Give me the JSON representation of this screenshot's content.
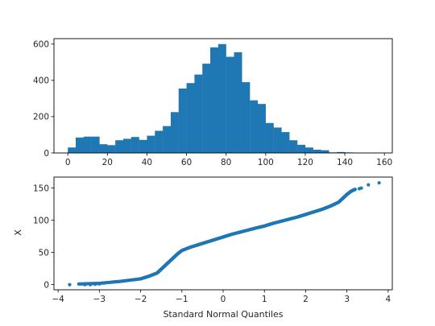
{
  "chart_data": [
    {
      "type": "bar",
      "subtype": "histogram",
      "color": "#1f77b4",
      "xlim": [
        -7,
        164
      ],
      "ylim": [
        0,
        630
      ],
      "xticks": [
        0,
        20,
        40,
        60,
        80,
        100,
        120,
        140,
        160
      ],
      "yticks": [
        0,
        200,
        400,
        600
      ],
      "xticklabels": [
        "0",
        "20",
        "40",
        "60",
        "80",
        "100",
        "120",
        "140",
        "160"
      ],
      "yticklabels": [
        "0",
        "200",
        "400",
        "600"
      ],
      "bin_edges": [
        0,
        4,
        8,
        12,
        16,
        20,
        24,
        28,
        32,
        36,
        40,
        44,
        48,
        52,
        56,
        60,
        64,
        68,
        72,
        76,
        80,
        84,
        88,
        92,
        96,
        100,
        104,
        108,
        112,
        116,
        120,
        124,
        128,
        132,
        136,
        140,
        144,
        148,
        152,
        156,
        160
      ],
      "counts": [
        30,
        85,
        90,
        90,
        48,
        43,
        70,
        78,
        88,
        72,
        95,
        122,
        148,
        225,
        355,
        385,
        432,
        492,
        582,
        600,
        530,
        555,
        390,
        290,
        270,
        165,
        140,
        115,
        70,
        45,
        30,
        18,
        15,
        3,
        5,
        3,
        0,
        0,
        0,
        0
      ],
      "grid": false
    },
    {
      "type": "scatter",
      "subtype": "qq-plot",
      "color": "#1f77b4",
      "xlabel": "Standard Normal Quantiles",
      "ylabel": "X",
      "xlim": [
        -4.1,
        4.1
      ],
      "ylim": [
        -8,
        167
      ],
      "xticks": [
        -4,
        -3,
        -2,
        -1,
        0,
        1,
        2,
        3,
        4
      ],
      "yticks": [
        0,
        50,
        100,
        150
      ],
      "xticklabels": [
        "−4",
        "−3",
        "−2",
        "−1",
        "0",
        "1",
        "2",
        "3",
        "4"
      ],
      "yticklabels": [
        "0",
        "50",
        "100",
        "150"
      ],
      "curve_x": [
        -3.5,
        -3.0,
        -2.5,
        -2.0,
        -1.8,
        -1.6,
        -1.5,
        -1.4,
        -1.3,
        -1.2,
        -1.1,
        -1.0,
        -0.8,
        -0.6,
        -0.4,
        -0.2,
        0.0,
        0.2,
        0.5,
        0.8,
        1.0,
        1.2,
        1.5,
        1.8,
        2.0,
        2.2,
        2.4,
        2.6,
        2.8,
        2.9,
        3.0,
        3.1,
        3.2
      ],
      "curve_y": [
        1,
        2,
        5,
        9,
        13,
        18,
        24,
        30,
        36,
        42,
        48,
        53,
        58,
        62,
        66,
        70,
        74,
        78,
        83,
        88,
        91,
        95,
        100,
        105,
        109,
        113,
        117,
        122,
        128,
        134,
        140,
        145,
        148
      ],
      "extra_points": [
        [
          -3.72,
          0
        ],
        [
          -3.35,
          0
        ],
        [
          -3.22,
          0
        ],
        [
          -3.1,
          0.5
        ],
        [
          -3.0,
          1
        ],
        [
          3.3,
          149
        ],
        [
          3.35,
          150
        ],
        [
          3.52,
          155
        ],
        [
          3.78,
          158
        ]
      ],
      "grid": false
    }
  ]
}
